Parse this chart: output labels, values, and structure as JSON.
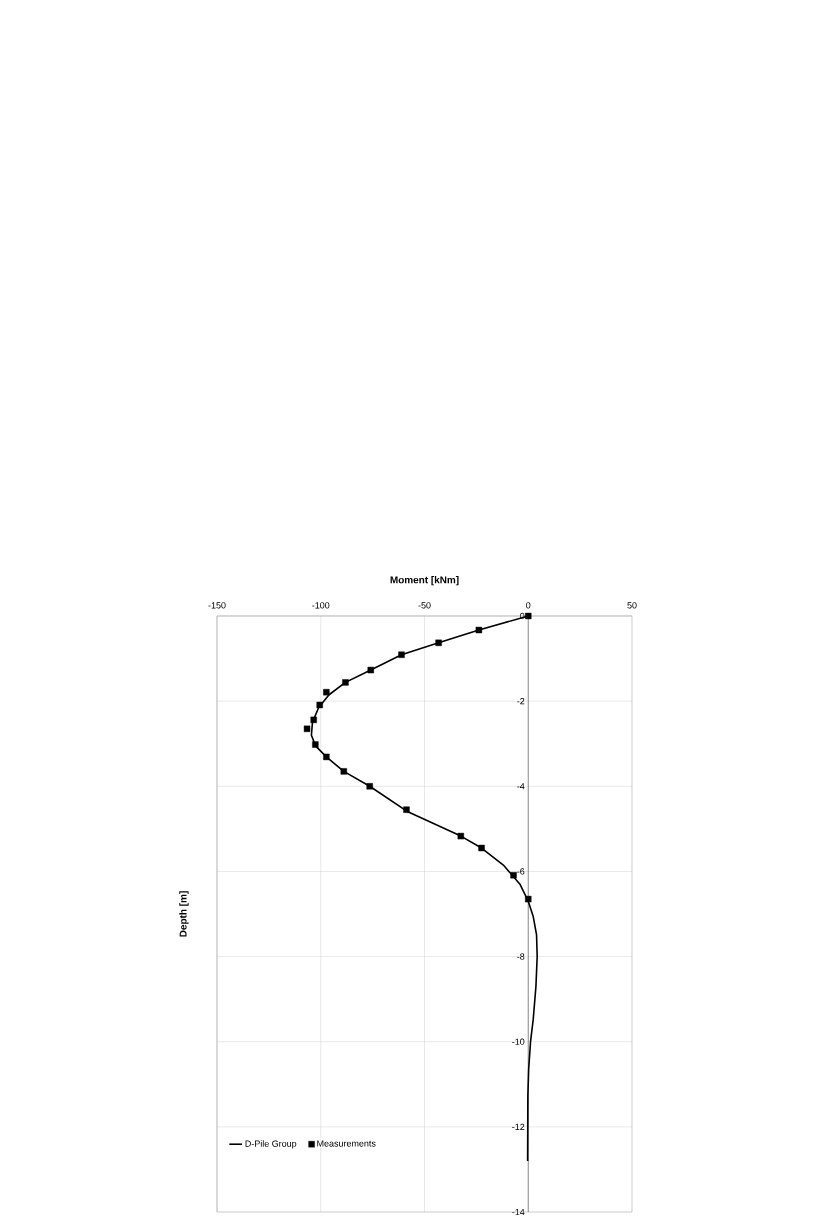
{
  "chart_data": {
    "type": "line",
    "xlabel": "Moment [kNm]",
    "ylabel": "Depth [m]",
    "xlim": [
      -150,
      50
    ],
    "xticks": [
      -150,
      -100,
      -50,
      0,
      50
    ],
    "ylim": [
      -14,
      0
    ],
    "yticks": [
      -14,
      -12,
      -10,
      -8,
      -6,
      -4,
      -2,
      0
    ],
    "grid": true,
    "legend": "bottom left",
    "series": [
      {
        "name": "D-Pile Group",
        "type": "line",
        "color": "#000000",
        "marker": "none",
        "line_style": "solid",
        "x": [
          0,
          -23.8,
          -43.2,
          -61.1,
          -75.9,
          -88.1,
          -96,
          -101,
          -104,
          -104.5,
          -102.5,
          -97.3,
          -88.9,
          -76.4,
          -58,
          -32.5,
          -22.5,
          -12,
          -4,
          0,
          2.4,
          4.0,
          4.3,
          3.7,
          2.4,
          1.1,
          0.2,
          -0.2,
          -0.3
        ],
        "values": [
          0,
          -0.33,
          -0.63,
          -0.91,
          -1.27,
          -1.56,
          -1.85,
          -2.15,
          -2.5,
          -2.8,
          -3.05,
          -3.31,
          -3.65,
          -4.0,
          -4.6,
          -5.17,
          -5.45,
          -5.85,
          -6.3,
          -6.7,
          -7.06,
          -7.49,
          -8.0,
          -8.7,
          -9.47,
          -10,
          -10.65,
          -11.28,
          -12.8
        ]
      },
      {
        "name": "Measurements",
        "type": "scatter",
        "color": "#000000",
        "marker": "square",
        "x": [
          0,
          -23.8,
          -43.2,
          -61.1,
          -75.9,
          -88.1,
          -97.3,
          -100.5,
          -103.4,
          -106.6,
          -102.6,
          -97.3,
          -88.9,
          -76.4,
          -58.7,
          -32.5,
          -22.5,
          -7.1,
          0
        ],
        "values": [
          0,
          -0.33,
          -0.63,
          -0.91,
          -1.27,
          -1.56,
          -1.79,
          -2.09,
          -2.44,
          -2.65,
          -3.02,
          -3.31,
          -3.65,
          -4.0,
          -4.55,
          -5.17,
          -5.45,
          -6.09,
          -6.65
        ]
      }
    ]
  }
}
